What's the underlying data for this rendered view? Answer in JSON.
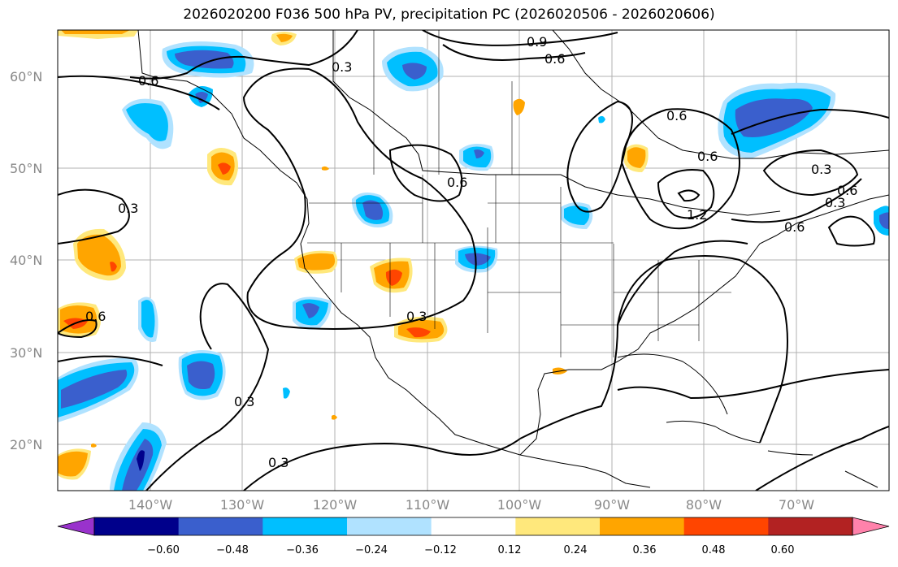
{
  "title": "2026020200 F036 500 hPa PV, precipitation PC (2026020506 - 2026020606)",
  "map": {
    "lon_range": [
      -150,
      -60
    ],
    "lat_range": [
      15,
      65
    ],
    "lat_labels": [
      "60°N",
      "50°N",
      "40°N",
      "30°N",
      "20°N"
    ],
    "lon_labels": [
      "140°W",
      "130°W",
      "120°W",
      "110°W",
      "100°W",
      "90°W",
      "80°W",
      "70°W"
    ],
    "contour_labels": [
      "0.9",
      "0.6",
      "0.3",
      "0.6",
      "0.6",
      "0.3",
      "0.6",
      "1.2",
      "0.3",
      "0.6",
      "0.3",
      "0.3",
      "0.6",
      "0.3",
      "0.3",
      "0.6",
      "0.6"
    ]
  },
  "colorbar": {
    "colors": [
      "#9932CC",
      "#00008B",
      "#3A5FCD",
      "#00BFFF",
      "#B0E2FF",
      "#FFFFFF",
      "#FFE87C",
      "#FFA500",
      "#FF4500",
      "#B22222",
      "#FF82AB"
    ],
    "tick_labels": [
      "−0.60",
      "−0.48",
      "−0.36",
      "−0.24",
      "−0.12",
      "0.12",
      "0.24",
      "0.36",
      "0.48",
      "0.60"
    ]
  }
}
